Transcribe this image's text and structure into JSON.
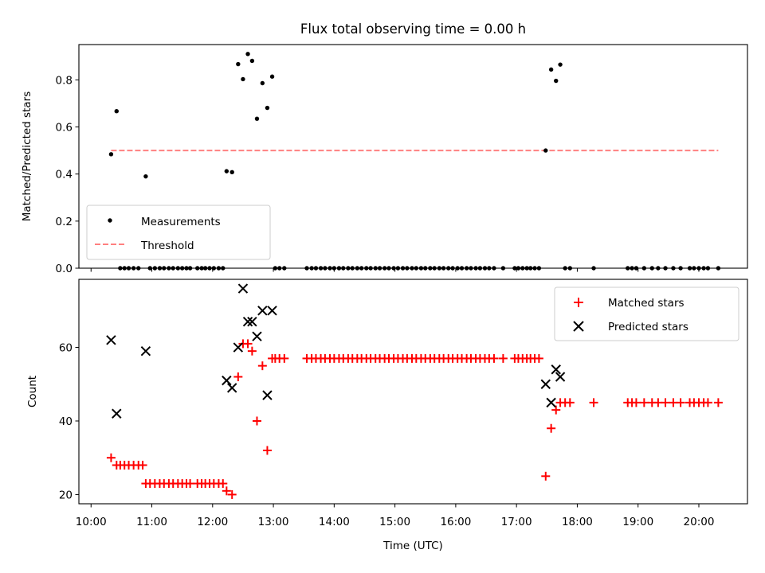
{
  "chart_data": [
    {
      "type": "scatter",
      "title": "Flux total observing time = 0.00 h",
      "xlabel": "",
      "ylabel": "Matched/Predicted stars",
      "xlim": [
        9.8,
        20.8
      ],
      "ylim": [
        0.0,
        0.95
      ],
      "yticks": [
        0.0,
        0.2,
        0.4,
        0.6,
        0.8
      ],
      "ytick_labels": [
        "0.0",
        "0.2",
        "0.4",
        "0.6",
        "0.8"
      ],
      "grid": false,
      "legend_position": "lower-left",
      "legend": [
        "Measurements",
        "Threshold"
      ],
      "series": [
        {
          "name": "Measurements",
          "marker": "dot",
          "color": "#000000",
          "x": [
            10.33,
            10.42,
            10.48,
            10.55,
            10.62,
            10.7,
            10.78,
            10.9,
            10.97,
            11.05,
            11.13,
            11.2,
            11.28,
            11.35,
            11.43,
            11.5,
            11.57,
            11.63,
            11.75,
            11.82,
            11.88,
            11.95,
            12.02,
            12.1,
            12.17,
            12.23,
            12.32,
            12.42,
            12.5,
            12.58,
            12.65,
            12.73,
            12.82,
            12.9,
            12.98,
            13.03,
            13.1,
            13.18,
            13.55,
            13.63,
            13.7,
            13.78,
            13.85,
            13.93,
            14.0,
            14.08,
            14.15,
            14.23,
            14.3,
            14.38,
            14.45,
            14.53,
            14.6,
            14.68,
            14.75,
            14.83,
            14.9,
            14.98,
            15.05,
            15.13,
            15.2,
            15.28,
            15.35,
            15.43,
            15.5,
            15.58,
            15.65,
            15.73,
            15.8,
            15.88,
            15.95,
            16.03,
            16.1,
            16.18,
            16.25,
            16.33,
            16.4,
            16.48,
            16.55,
            16.63,
            16.78,
            16.97,
            17.03,
            17.1,
            17.17,
            17.23,
            17.3,
            17.37,
            17.48,
            17.57,
            17.65,
            17.72,
            17.8,
            17.88,
            18.27,
            18.83,
            18.9,
            18.97,
            19.1,
            19.23,
            19.33,
            19.45,
            19.58,
            19.7,
            19.85,
            19.92,
            20.0,
            20.08,
            20.15,
            20.32
          ],
          "y": [
            0.484,
            0.667,
            0.0,
            0.0,
            0.0,
            0.0,
            0.0,
            0.39,
            0.0,
            0.0,
            0.0,
            0.0,
            0.0,
            0.0,
            0.0,
            0.0,
            0.0,
            0.0,
            0.0,
            0.0,
            0.0,
            0.0,
            0.0,
            0.0,
            0.0,
            0.412,
            0.408,
            0.867,
            0.803,
            0.91,
            0.881,
            0.635,
            0.786,
            0.681,
            0.814,
            0.0,
            0.0,
            0.0,
            0.0,
            0.0,
            0.0,
            0.0,
            0.0,
            0.0,
            0.0,
            0.0,
            0.0,
            0.0,
            0.0,
            0.0,
            0.0,
            0.0,
            0.0,
            0.0,
            0.0,
            0.0,
            0.0,
            0.0,
            0.0,
            0.0,
            0.0,
            0.0,
            0.0,
            0.0,
            0.0,
            0.0,
            0.0,
            0.0,
            0.0,
            0.0,
            0.0,
            0.0,
            0.0,
            0.0,
            0.0,
            0.0,
            0.0,
            0.0,
            0.0,
            0.0,
            0.0,
            0.0,
            0.0,
            0.0,
            0.0,
            0.0,
            0.0,
            0.0,
            0.5,
            0.844,
            0.796,
            0.865,
            0.0,
            0.0,
            0.0,
            0.0,
            0.0,
            0.0,
            0.0,
            0.0,
            0.0,
            0.0,
            0.0,
            0.0,
            0.0,
            0.0,
            0.0,
            0.0,
            0.0,
            0.0
          ]
        },
        {
          "name": "Threshold",
          "type": "line",
          "style": "dashed",
          "color": "#ff8080",
          "x": [
            10.33,
            20.32
          ],
          "y": [
            0.5,
            0.5
          ]
        }
      ]
    },
    {
      "type": "scatter",
      "title": "",
      "xlabel": "Time (UTC)",
      "ylabel": "Count",
      "xlim": [
        9.8,
        20.8
      ],
      "ylim": [
        17.5,
        78.5
      ],
      "yticks": [
        20,
        40,
        60
      ],
      "ytick_labels": [
        "20",
        "40",
        "60"
      ],
      "xticks": [
        10,
        11,
        12,
        13,
        14,
        15,
        16,
        17,
        18,
        19,
        20
      ],
      "xtick_labels": [
        "10:00",
        "11:00",
        "12:00",
        "13:00",
        "14:00",
        "15:00",
        "16:00",
        "17:00",
        "18:00",
        "19:00",
        "20:00"
      ],
      "grid": false,
      "legend_position": "top-right",
      "legend": [
        "Matched stars",
        "Predicted stars"
      ],
      "series": [
        {
          "name": "Matched stars",
          "marker": "plus",
          "color": "#ff0000",
          "x": [
            10.33,
            10.42,
            10.48,
            10.55,
            10.62,
            10.7,
            10.78,
            10.85,
            10.9,
            10.97,
            11.05,
            11.13,
            11.2,
            11.28,
            11.35,
            11.43,
            11.5,
            11.57,
            11.63,
            11.75,
            11.82,
            11.88,
            11.95,
            12.02,
            12.1,
            12.17,
            12.23,
            12.32,
            12.42,
            12.5,
            12.58,
            12.65,
            12.73,
            12.82,
            12.9,
            12.98,
            13.03,
            13.1,
            13.18,
            13.55,
            13.63,
            13.7,
            13.78,
            13.85,
            13.93,
            14.0,
            14.08,
            14.15,
            14.23,
            14.3,
            14.38,
            14.45,
            14.53,
            14.6,
            14.68,
            14.75,
            14.83,
            14.9,
            14.98,
            15.05,
            15.13,
            15.2,
            15.28,
            15.35,
            15.43,
            15.5,
            15.58,
            15.65,
            15.73,
            15.8,
            15.88,
            15.95,
            16.03,
            16.1,
            16.18,
            16.25,
            16.33,
            16.4,
            16.48,
            16.55,
            16.63,
            16.78,
            16.97,
            17.03,
            17.1,
            17.17,
            17.23,
            17.3,
            17.37,
            17.48,
            17.57,
            17.65,
            17.72,
            17.8,
            17.88,
            18.27,
            18.83,
            18.9,
            18.97,
            19.1,
            19.23,
            19.33,
            19.45,
            19.58,
            19.7,
            19.85,
            19.92,
            20.0,
            20.08,
            20.15,
            20.32
          ],
          "y": [
            30,
            28,
            28,
            28,
            28,
            28,
            28,
            28,
            23,
            23,
            23,
            23,
            23,
            23,
            23,
            23,
            23,
            23,
            23,
            23,
            23,
            23,
            23,
            23,
            23,
            23,
            21,
            20,
            52,
            61,
            61,
            59,
            40,
            55,
            32,
            57,
            57,
            57,
            57,
            57,
            57,
            57,
            57,
            57,
            57,
            57,
            57,
            57,
            57,
            57,
            57,
            57,
            57,
            57,
            57,
            57,
            57,
            57,
            57,
            57,
            57,
            57,
            57,
            57,
            57,
            57,
            57,
            57,
            57,
            57,
            57,
            57,
            57,
            57,
            57,
            57,
            57,
            57,
            57,
            57,
            57,
            57,
            57,
            57,
            57,
            57,
            57,
            57,
            57,
            25,
            38,
            43,
            45,
            45,
            45,
            45,
            45,
            45,
            45,
            45,
            45,
            45,
            45,
            45,
            45,
            45,
            45,
            45,
            45,
            45,
            45
          ]
        },
        {
          "name": "Predicted stars",
          "marker": "x",
          "color": "#000000",
          "x": [
            10.33,
            10.42,
            10.9,
            12.23,
            12.32,
            12.42,
            12.5,
            12.58,
            12.65,
            12.73,
            12.82,
            12.9,
            12.98,
            17.48,
            17.57,
            17.65,
            17.72
          ],
          "y": [
            62,
            42,
            59,
            51,
            49,
            60,
            76,
            67,
            67,
            63,
            70,
            47,
            70,
            50,
            45,
            54,
            52
          ]
        }
      ]
    }
  ]
}
